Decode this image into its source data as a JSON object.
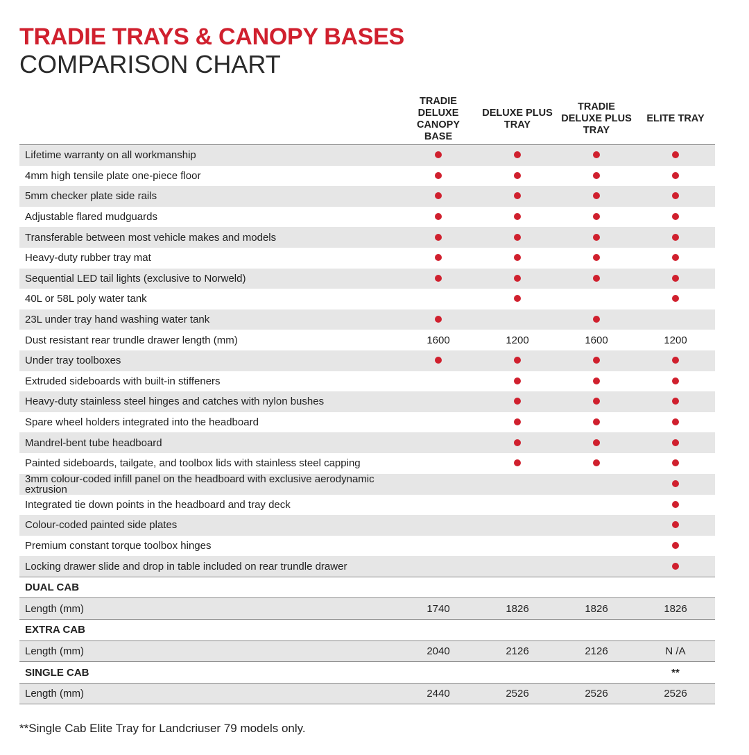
{
  "header": {
    "title": "TRADIE TRAYS & CANOPY BASES",
    "subtitle": "COMPARISON CHART"
  },
  "table": {
    "columns": [
      "TRADIE DELUXE CANOPY BASE",
      "DELUXE PLUS TRAY",
      "TRADIE DELUXE PLUS TRAY",
      "ELITE TRAY"
    ],
    "rows": [
      [
        "Lifetime warranty on all workmanship",
        true,
        true,
        true,
        true
      ],
      [
        "4mm high tensile plate one-piece floor",
        true,
        true,
        true,
        true
      ],
      [
        "5mm checker plate side rails",
        true,
        true,
        true,
        true
      ],
      [
        "Adjustable flared mudguards",
        true,
        true,
        true,
        true
      ],
      [
        "Transferable between most vehicle makes and models",
        true,
        true,
        true,
        true
      ],
      [
        "Heavy-duty rubber tray mat",
        true,
        true,
        true,
        true
      ],
      [
        "Sequential LED tail lights (exclusive to Norweld)",
        true,
        true,
        true,
        true
      ],
      [
        "40L or 58L poly water tank",
        null,
        true,
        null,
        true
      ],
      [
        "23L under tray hand washing water tank",
        true,
        null,
        true,
        null
      ],
      [
        "Dust resistant rear trundle drawer length (mm)",
        1600,
        1200,
        1600,
        1200
      ],
      [
        "Under tray toolboxes",
        true,
        true,
        true,
        true
      ],
      [
        "Extruded sideboards with built-in stiffeners",
        null,
        true,
        true,
        true
      ],
      [
        "Heavy-duty stainless steel hinges and catches with nylon bushes",
        null,
        true,
        true,
        true
      ],
      [
        "Spare wheel holders integrated into the headboard",
        null,
        true,
        true,
        true
      ],
      [
        "Mandrel-bent tube headboard",
        null,
        true,
        true,
        true
      ],
      [
        "Painted sideboards, tailgate, and toolbox lids with stainless steel capping",
        null,
        true,
        true,
        true
      ],
      [
        "3mm colour-coded infill panel on the headboard with exclusive aerodynamic extrusion",
        null,
        null,
        null,
        true
      ],
      [
        "Integrated tie down points in the headboard and tray deck",
        null,
        null,
        null,
        true
      ],
      [
        "Colour-coded painted side plates",
        null,
        null,
        null,
        true
      ],
      [
        "Premium constant torque toolbox hinges",
        null,
        null,
        null,
        true
      ],
      [
        "Locking drawer slide and drop in table included on rear trundle drawer",
        null,
        null,
        null,
        true
      ]
    ],
    "sections": [
      {
        "title": "DUAL CAB",
        "notes": [
          null,
          null,
          null,
          null
        ],
        "row": [
          "Length (mm)",
          1740,
          1826,
          1826,
          1826
        ]
      },
      {
        "title": "EXTRA CAB",
        "notes": [
          null,
          null,
          null,
          null
        ],
        "row": [
          "Length (mm)",
          2040,
          2126,
          2126,
          "N /A"
        ]
      },
      {
        "title": "SINGLE CAB",
        "notes": [
          null,
          null,
          null,
          "**"
        ],
        "row": [
          "Length (mm)",
          2440,
          2526,
          2526,
          2526
        ]
      }
    ]
  },
  "footnote": "**Single Cab Elite Tray for Landcriuser 79 models only."
}
